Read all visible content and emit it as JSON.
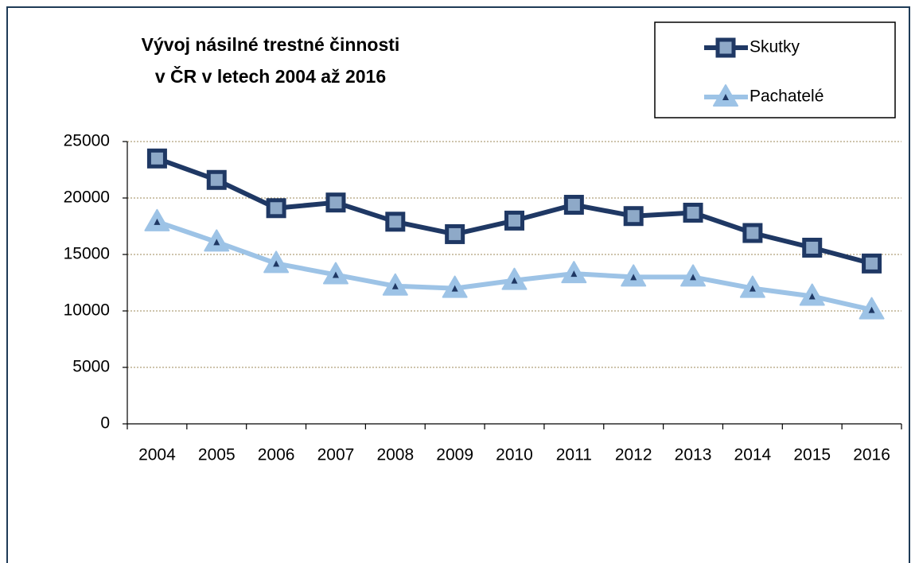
{
  "chart_data": {
    "type": "line",
    "title": "Vývoj násilné trestné činnosti\nv ČR v letech 2004 až 2016",
    "categories": [
      "2004",
      "2005",
      "2006",
      "2007",
      "2008",
      "2009",
      "2010",
      "2011",
      "2012",
      "2013",
      "2014",
      "2015",
      "2016"
    ],
    "series": [
      {
        "name": "Skutky",
        "color": "#1f3864",
        "marker": "square",
        "values": [
          23500,
          21600,
          19100,
          19600,
          17900,
          16800,
          18000,
          19400,
          18400,
          18700,
          16900,
          15600,
          14200
        ]
      },
      {
        "name": "Pachatelé",
        "color": "#9dc3e6",
        "marker": "triangle",
        "values": [
          17900,
          16100,
          14200,
          13200,
          12200,
          12000,
          12700,
          13300,
          13000,
          13000,
          12000,
          11300,
          10100
        ]
      }
    ],
    "ylim": [
      0,
      25000
    ],
    "yticks": [
      0,
      5000,
      10000,
      15000,
      20000,
      25000
    ],
    "grid": true
  }
}
